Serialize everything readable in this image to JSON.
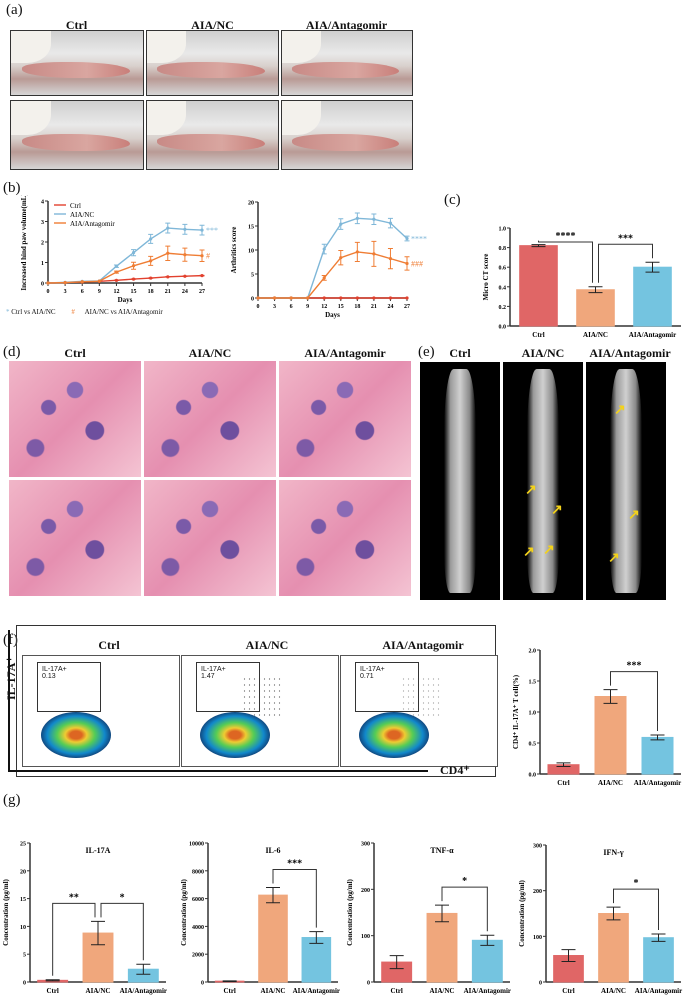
{
  "panels": {
    "a": "(a)",
    "b": "(b)",
    "c": "(c)",
    "d": "(d)",
    "e": "(e)",
    "f": "(f)",
    "g": "(g)"
  },
  "groups": [
    "Ctrl",
    "AIA/NC",
    "AIA/Antagomir"
  ],
  "colors": {
    "ctrl": "#e06666",
    "nc": "#f0a77c",
    "antag": "#74c4e0",
    "ctrl_line": "#e2412e",
    "nc_line": "#7fb7d8",
    "antag_line": "#ef7d34"
  },
  "legend_b": {
    "star": "*",
    "star_text": "Ctrl vs AIA/NC",
    "hash": "#",
    "hash_text": "AIA/NC vs AIA/Antagomir"
  },
  "flow": {
    "y_axis": "IL-17A⁺",
    "x_axis": "CD4⁺",
    "gate_label": "IL-17A+",
    "values": [
      "0.13",
      "1.47",
      "0.71"
    ]
  },
  "arrows": "↗",
  "chart_data": [
    {
      "type": "line",
      "id": "paw",
      "xlabel": "Days",
      "ylabel": "Increased hind paw volume(mL)",
      "ylim": [
        0,
        4
      ],
      "yticks": [
        0,
        1,
        2,
        3,
        4
      ],
      "x": [
        0,
        3,
        6,
        9,
        12,
        15,
        18,
        21,
        24,
        27
      ],
      "legend": "top-left",
      "series": [
        {
          "name": "Ctrl",
          "values": [
            0,
            0.02,
            0.05,
            0.08,
            0.13,
            0.19,
            0.24,
            0.3,
            0.33,
            0.36
          ],
          "err": [
            0,
            0,
            0,
            0,
            0.01,
            0.01,
            0.01,
            0.01,
            0.01,
            0.01
          ]
        },
        {
          "name": "AIA/NC",
          "values": [
            0,
            0.03,
            0.08,
            0.1,
            0.82,
            1.48,
            2.15,
            2.68,
            2.62,
            2.58
          ],
          "err": [
            0,
            0,
            0,
            0,
            0.06,
            0.15,
            0.22,
            0.24,
            0.24,
            0.24
          ],
          "sig": "***"
        },
        {
          "name": "AIA/Antagomir",
          "values": [
            0,
            0.02,
            0.06,
            0.09,
            0.53,
            0.84,
            1.08,
            1.45,
            1.38,
            1.33
          ],
          "err": [
            0,
            0,
            0,
            0,
            0.05,
            0.17,
            0.22,
            0.35,
            0.32,
            0.28
          ],
          "sig": "#"
        }
      ]
    },
    {
      "type": "line",
      "id": "score",
      "xlabel": "Days",
      "ylabel": "Arthritics  score",
      "ylim": [
        0,
        20
      ],
      "yticks": [
        0,
        5,
        10,
        15,
        20
      ],
      "x": [
        0,
        3,
        6,
        9,
        12,
        15,
        18,
        21,
        24,
        27
      ],
      "series": [
        {
          "name": "Ctrl",
          "values": [
            0,
            0,
            0,
            0,
            0,
            0,
            0,
            0,
            0,
            0
          ],
          "err": [
            0,
            0,
            0,
            0,
            0,
            0,
            0,
            0,
            0,
            0
          ]
        },
        {
          "name": "AIA/NC",
          "values": [
            0,
            0,
            0,
            0,
            10.2,
            15.4,
            16.6,
            16.4,
            15.6,
            12.4
          ],
          "err": [
            0,
            0,
            0,
            0,
            1,
            1.1,
            1.1,
            1.1,
            1,
            0.5
          ],
          "sig": "****"
        },
        {
          "name": "AIA/Antagomir",
          "values": [
            0,
            0,
            0,
            0,
            4.2,
            8.4,
            9.6,
            9.2,
            8.2,
            7.2
          ],
          "err": [
            0,
            0,
            0,
            0,
            0.5,
            1.5,
            2,
            2.6,
            2.1,
            1.4
          ],
          "sig": "###"
        }
      ]
    },
    {
      "type": "bar",
      "id": "ct",
      "ylabel": "Micro CT score",
      "ylim": [
        0,
        1
      ],
      "yticks": [
        "0.0",
        "0.2",
        "0.4",
        "0.6",
        "0.8",
        "1.0"
      ],
      "categories": [
        "Ctrl",
        "AIA/NC",
        "AIA/Antagomir"
      ],
      "values": [
        0.82,
        0.37,
        0.6
      ],
      "err": [
        0.01,
        0.03,
        0.05
      ],
      "sig": [
        {
          "a": 0,
          "b": 1,
          "t": "****"
        },
        {
          "a": 1,
          "b": 2,
          "t": "***"
        }
      ]
    },
    {
      "type": "bar",
      "id": "th17",
      "ylabel": "CD4⁺ IL-17A⁺ T cell(%)",
      "ylim": [
        0,
        2
      ],
      "yticks": [
        "0.0",
        "0.5",
        "1.0",
        "1.5",
        "2.0"
      ],
      "categories": [
        "Ctrl",
        "AIA/NC",
        "AIA/Antagomir"
      ],
      "values": [
        0.15,
        1.25,
        0.59
      ],
      "err": [
        0.03,
        0.11,
        0.04
      ],
      "sig": [
        {
          "a": 1,
          "b": 2,
          "t": "***"
        }
      ]
    },
    {
      "type": "bar",
      "id": "il17",
      "title": "IL-17A",
      "ylabel": "Concentration (pg/ml)",
      "ylim": [
        0,
        25
      ],
      "yticks": [
        "0",
        "5",
        "10",
        "15",
        "20",
        "25"
      ],
      "categories": [
        "Ctrl",
        "AIA/NC",
        "AIA/Antagomir"
      ],
      "values": [
        0.3,
        8.8,
        2.3
      ],
      "err": [
        0.1,
        2.1,
        0.9
      ],
      "sig": [
        {
          "a": 0,
          "b": 1,
          "t": "**"
        },
        {
          "a": 1,
          "b": 2,
          "t": "*"
        }
      ]
    },
    {
      "type": "bar",
      "id": "il6",
      "title": "IL-6",
      "ylabel": "Concentration (pg/ml)",
      "ylim": [
        0,
        10000
      ],
      "yticks": [
        "0",
        "2000",
        "4000",
        "6000",
        "8000",
        "10000"
      ],
      "categories": [
        "Ctrl",
        "AIA/NC",
        "AIA/Antagomir"
      ],
      "values": [
        60,
        6250,
        3200
      ],
      "err": [
        20,
        550,
        420
      ],
      "sig": [
        {
          "a": 1,
          "b": 2,
          "t": "***"
        }
      ]
    },
    {
      "type": "bar",
      "id": "tnf",
      "title": "TNF-α",
      "ylabel": "Concentration (pg/ml)",
      "ylim": [
        0,
        300
      ],
      "yticks": [
        "0",
        "100",
        "200",
        "300"
      ],
      "categories": [
        "Ctrl",
        "AIA/NC",
        "AIA/Antagomir"
      ],
      "values": [
        43,
        148,
        90
      ],
      "err": [
        14,
        18,
        11
      ],
      "sig": [
        {
          "a": 1,
          "b": 2,
          "t": "*"
        }
      ]
    },
    {
      "type": "bar",
      "id": "ifn",
      "title": "IFN-γ",
      "ylabel": "Concentration (pg/ml)",
      "ylim": [
        0,
        300
      ],
      "yticks": [
        "0",
        "100",
        "200",
        "300"
      ],
      "categories": [
        "Ctrl",
        "AIA/NC",
        "AIA/Antagomir"
      ],
      "values": [
        58,
        150,
        97
      ],
      "err": [
        13,
        14,
        8
      ],
      "sig": [
        {
          "a": 1,
          "b": 2,
          "t": "*"
        }
      ]
    }
  ]
}
